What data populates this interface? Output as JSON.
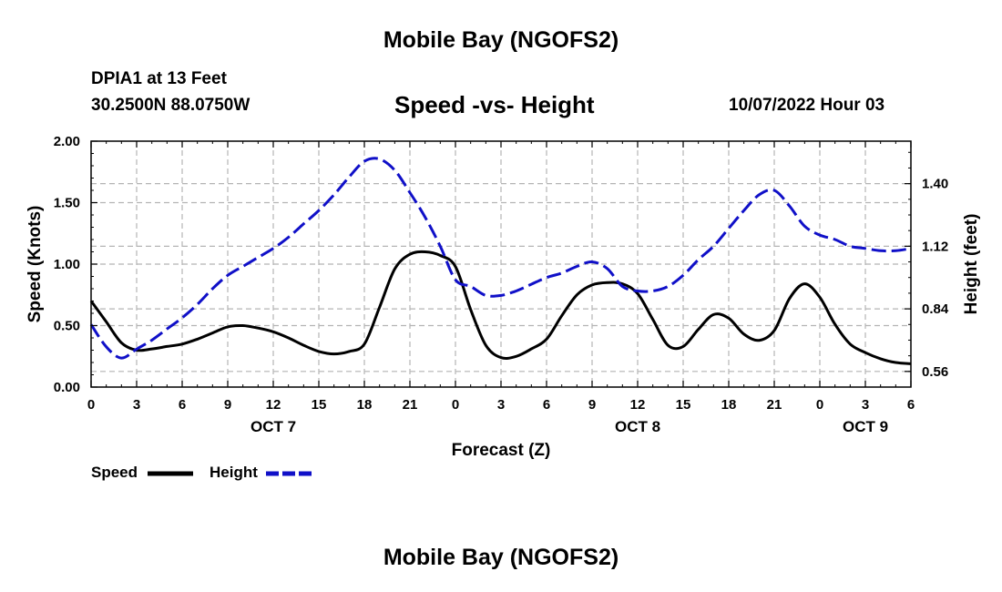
{
  "header": {
    "title": "Mobile Bay (NGOFS2)",
    "station": "DPIA1 at 13 Feet",
    "coords": "30.2500N  88.0750W",
    "subtitle": "Speed -vs- Height",
    "datetime": "10/07/2022 Hour 03",
    "bottom_title": "Mobile Bay (NGOFS2)"
  },
  "legend": {
    "speed_label": "Speed",
    "height_label": "Height"
  },
  "colors": {
    "speed": "#000000",
    "height": "#1010c8",
    "grid": "#b4b4b4"
  },
  "chart_data": {
    "type": "line",
    "xlabel": "Forecast (Z)",
    "ylabel_left": "Speed (Knots)",
    "ylabel_right": "Height (feet)",
    "xlim": [
      0,
      54
    ],
    "ylim_left": [
      0,
      2.0
    ],
    "ylim_right": [
      0.49,
      1.59
    ],
    "x_ticks": [
      0,
      3,
      6,
      9,
      12,
      15,
      18,
      21,
      24,
      27,
      30,
      33,
      36,
      39,
      42,
      45,
      48,
      51,
      54
    ],
    "x_tick_labels": [
      "0",
      "3",
      "6",
      "9",
      "12",
      "15",
      "18",
      "21",
      "0",
      "3",
      "6",
      "9",
      "12",
      "15",
      "18",
      "21",
      "0",
      "3",
      "6"
    ],
    "day_labels": [
      {
        "x": 12,
        "label": "OCT 7"
      },
      {
        "x": 36,
        "label": "OCT 8"
      },
      {
        "x": 51,
        "label": "OCT 9"
      }
    ],
    "y_left_ticks": [
      0.0,
      0.5,
      1.0,
      1.5,
      2.0
    ],
    "y_left_tick_labels": [
      "0.00",
      "0.50",
      "1.00",
      "1.50",
      "2.00"
    ],
    "y_right_ticks": [
      0.56,
      0.84,
      1.12,
      1.4
    ],
    "y_right_tick_labels": [
      "0.56",
      "0.84",
      "1.12",
      "1.40"
    ],
    "grid": true,
    "series": [
      {
        "name": "Speed",
        "axis": "left",
        "style": "solid",
        "x": [
          0,
          1,
          2,
          3,
          4,
          5,
          6,
          7,
          8,
          9,
          10,
          11,
          12,
          13,
          14,
          15,
          16,
          17,
          18,
          19,
          20,
          21,
          22,
          23,
          24,
          25,
          26,
          27,
          28,
          29,
          30,
          31,
          32,
          33,
          34,
          35,
          36,
          37,
          38,
          39,
          40,
          41,
          42,
          43,
          44,
          45,
          46,
          47,
          48,
          49,
          50,
          51,
          52,
          53,
          54
        ],
        "values": [
          0.7,
          0.53,
          0.36,
          0.3,
          0.31,
          0.33,
          0.35,
          0.39,
          0.44,
          0.49,
          0.5,
          0.48,
          0.45,
          0.4,
          0.34,
          0.29,
          0.27,
          0.29,
          0.35,
          0.65,
          0.96,
          1.08,
          1.1,
          1.07,
          0.98,
          0.63,
          0.34,
          0.24,
          0.25,
          0.31,
          0.39,
          0.58,
          0.75,
          0.83,
          0.85,
          0.84,
          0.76,
          0.55,
          0.34,
          0.33,
          0.47,
          0.59,
          0.56,
          0.43,
          0.38,
          0.46,
          0.72,
          0.84,
          0.73,
          0.51,
          0.35,
          0.28,
          0.23,
          0.2,
          0.19
        ]
      },
      {
        "name": "Height",
        "axis": "right",
        "style": "dashed",
        "x": [
          0,
          1,
          2,
          3,
          4,
          5,
          6,
          7,
          8,
          9,
          10,
          11,
          12,
          13,
          14,
          15,
          16,
          17,
          18,
          19,
          20,
          21,
          22,
          23,
          24,
          25,
          26,
          27,
          28,
          29,
          30,
          31,
          32,
          33,
          34,
          35,
          36,
          37,
          38,
          39,
          40,
          41,
          42,
          43,
          44,
          45,
          46,
          47,
          48,
          49,
          50,
          51,
          52,
          53,
          54
        ],
        "values": [
          0.77,
          0.67,
          0.62,
          0.66,
          0.7,
          0.75,
          0.8,
          0.86,
          0.93,
          0.99,
          1.03,
          1.07,
          1.11,
          1.16,
          1.22,
          1.28,
          1.35,
          1.43,
          1.5,
          1.51,
          1.46,
          1.36,
          1.25,
          1.12,
          0.97,
          0.94,
          0.9,
          0.9,
          0.92,
          0.95,
          0.98,
          1.0,
          1.03,
          1.05,
          1.02,
          0.94,
          0.92,
          0.92,
          0.94,
          0.99,
          1.06,
          1.12,
          1.2,
          1.28,
          1.35,
          1.37,
          1.3,
          1.21,
          1.17,
          1.15,
          1.12,
          1.11,
          1.1,
          1.1,
          1.11
        ]
      }
    ]
  }
}
